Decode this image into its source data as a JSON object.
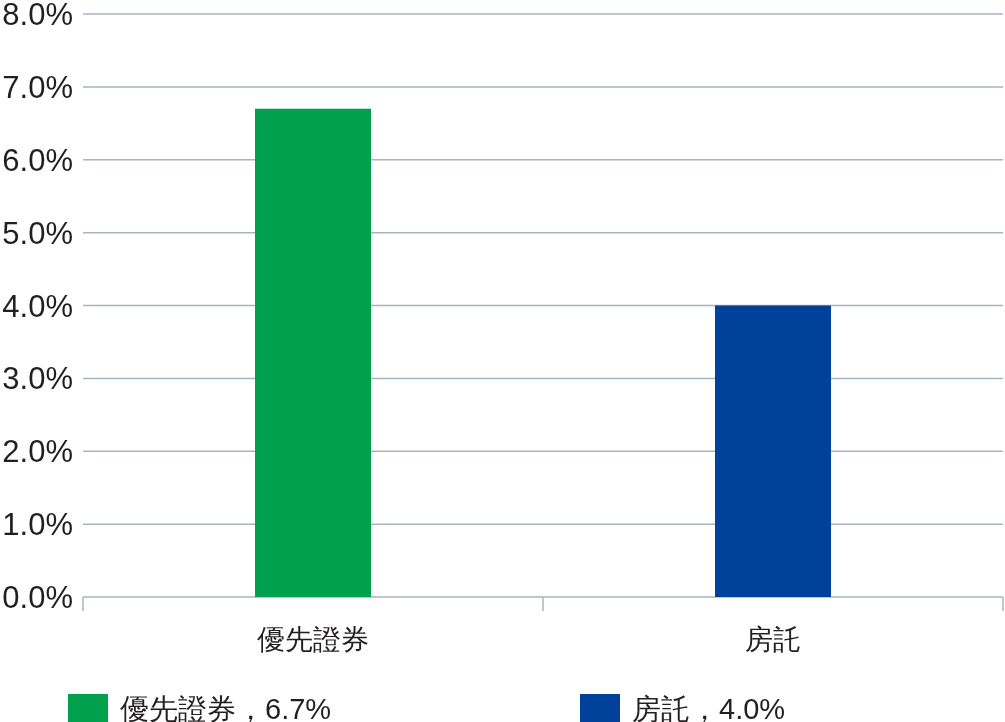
{
  "chart_data": {
    "type": "bar",
    "categories": [
      "優先證券",
      "房託"
    ],
    "series": [
      {
        "name": "優先證券，6.7%",
        "color": "#00a04f",
        "values": [
          6.7,
          null
        ]
      },
      {
        "name": "房託，4.0%",
        "color": "#00419b",
        "values": [
          null,
          4.0
        ]
      }
    ],
    "ylim": [
      0,
      8
    ],
    "yticks": [
      {
        "value": 0,
        "label": "0.0%"
      },
      {
        "value": 1,
        "label": "1.0%"
      },
      {
        "value": 2,
        "label": "2.0%"
      },
      {
        "value": 3,
        "label": "3.0%"
      },
      {
        "value": 4,
        "label": "4.0%"
      },
      {
        "value": 5,
        "label": "5.0%"
      },
      {
        "value": 6,
        "label": "6.0%"
      },
      {
        "value": 7,
        "label": "7.0%"
      },
      {
        "value": 8,
        "label": "8.0%"
      }
    ],
    "grid": "y",
    "legend": "bottom"
  }
}
